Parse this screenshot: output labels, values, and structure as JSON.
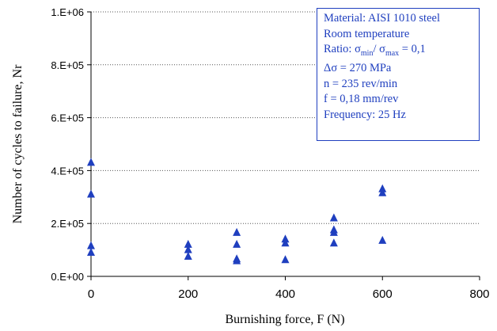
{
  "chart_data": {
    "type": "scatter",
    "title": "",
    "xlabel": "Burnishing force, F (N)",
    "ylabel": "Number of cycles to failure, Nr",
    "xlim": [
      0,
      800
    ],
    "ylim": [
      0,
      1000000
    ],
    "x_ticks": [
      "0",
      "200",
      "400",
      "600",
      "800"
    ],
    "y_ticks": [
      "0.E+00",
      "2.E+05",
      "4.E+05",
      "6.E+05",
      "8.E+05",
      "1.E+06"
    ],
    "grid": "horizontal dotted",
    "marker": "triangle",
    "color": "#1f3fbf",
    "points": [
      {
        "x": 0,
        "y": 430000
      },
      {
        "x": 0,
        "y": 310000
      },
      {
        "x": 0,
        "y": 115000
      },
      {
        "x": 0,
        "y": 90000
      },
      {
        "x": 200,
        "y": 120000
      },
      {
        "x": 200,
        "y": 100000
      },
      {
        "x": 200,
        "y": 75000
      },
      {
        "x": 300,
        "y": 165000
      },
      {
        "x": 300,
        "y": 120000
      },
      {
        "x": 300,
        "y": 65000
      },
      {
        "x": 300,
        "y": 58000
      },
      {
        "x": 400,
        "y": 140000
      },
      {
        "x": 400,
        "y": 125000
      },
      {
        "x": 400,
        "y": 62000
      },
      {
        "x": 500,
        "y": 220000
      },
      {
        "x": 500,
        "y": 175000
      },
      {
        "x": 500,
        "y": 165000
      },
      {
        "x": 500,
        "y": 125000
      },
      {
        "x": 600,
        "y": 330000
      },
      {
        "x": 600,
        "y": 315000
      },
      {
        "x": 600,
        "y": 135000
      }
    ]
  },
  "legend": {
    "material": "Material: AISI 1010 steel",
    "temperature": "Room temperature",
    "ratio_prefix": "Ratio: σ",
    "ratio_sub1": "min",
    "ratio_mid": "/ σ",
    "ratio_sub2": "max",
    "ratio_suffix": " = 0,1",
    "delta_sigma": "Δσ = 270 MPa",
    "speed": "n = 235 rev/min",
    "feed": "f = 0,18 mm/rev",
    "frequency": "Frequency: 25 Hz"
  }
}
